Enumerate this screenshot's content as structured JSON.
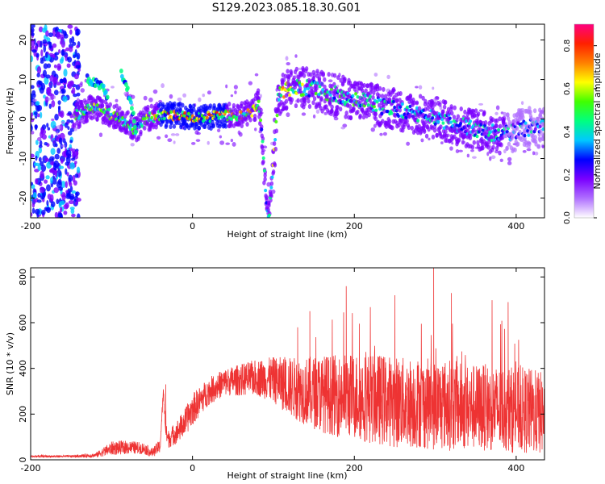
{
  "title": "S129.2023.085.18.30.G01",
  "colorbar": {
    "label": "Normalized spectral amplitude",
    "ticks": [
      "0.0",
      "0.2",
      "0.4",
      "0.6",
      "0.8"
    ],
    "tick_values": [
      0.0,
      0.2,
      0.4,
      0.6,
      0.8
    ],
    "range": [
      0,
      0.9
    ],
    "colors": [
      "#ffffff",
      "#b070ff",
      "#7a00ff",
      "#0000ff",
      "#00c8ff",
      "#00ff80",
      "#40ff00",
      "#ffff00",
      "#ff8000",
      "#ff2000",
      "#ff0080"
    ]
  },
  "chart_data": [
    {
      "type": "heatmap",
      "title": "S129.2023.085.18.30.G01",
      "xlabel": "Height of straight line (km)",
      "ylabel": "Frequency (Hz)",
      "xlim": [
        -200,
        435
      ],
      "ylim": [
        -25,
        24
      ],
      "x_ticks": [
        -200,
        0,
        200,
        400
      ],
      "x_tick_labels": [
        "-200",
        "0",
        "200",
        "400"
      ],
      "y_ticks": [
        -20,
        -10,
        0,
        10,
        20
      ],
      "y_tick_labels": [
        "-20",
        "-10",
        "0",
        "10",
        "20"
      ],
      "ridge": {
        "x": [
          -140,
          -125,
          -110,
          -100,
          -90,
          -80,
          -70,
          -60,
          -40,
          -20,
          0,
          20,
          40,
          60,
          75,
          82,
          88,
          92,
          95,
          100,
          105,
          110,
          120,
          140,
          160,
          180,
          200,
          220,
          240,
          260,
          280,
          300,
          320,
          340,
          360,
          380,
          400,
          420,
          435
        ],
        "y": [
          1,
          3,
          2,
          1,
          0,
          -1,
          -3,
          0,
          1,
          1,
          0.5,
          0.5,
          1,
          1,
          2,
          5,
          -10,
          -23,
          -24,
          -10,
          4,
          7,
          8,
          8,
          7,
          6,
          5,
          4,
          3,
          2,
          1,
          0,
          -1,
          -2,
          -3,
          -4,
          -3,
          -2,
          -2
        ],
        "level": [
          0.45,
          0.5,
          0.55,
          0.55,
          0.5,
          0.5,
          0.45,
          0.55,
          0.65,
          0.75,
          0.7,
          0.7,
          0.65,
          0.6,
          0.6,
          0.5,
          0.45,
          0.4,
          0.45,
          0.5,
          0.55,
          0.6,
          0.55,
          0.5,
          0.5,
          0.45,
          0.45,
          0.45,
          0.4,
          0.4,
          0.4,
          0.4,
          0.4,
          0.4,
          0.4,
          0.4,
          0.35,
          0.35,
          0.35
        ]
      },
      "secondary_ridges": [
        {
          "x": [
            -130,
            -120,
            -110,
            -105
          ],
          "y": [
            10,
            9,
            8,
            5
          ]
        },
        {
          "x": [
            -88,
            -85,
            -80,
            -75,
            -70
          ],
          "y": [
            12,
            10,
            7,
            3,
            -3
          ]
        }
      ],
      "noise_band": {
        "x": [
          -200,
          -140
        ]
      }
    },
    {
      "type": "line",
      "xlabel": "Height of straight line (km)",
      "ylabel": "SNR (10 * v/v)",
      "xlim": [
        -200,
        435
      ],
      "ylim": [
        0,
        840
      ],
      "x_ticks": [
        -200,
        0,
        200,
        400
      ],
      "x_tick_labels": [
        "-200",
        "0",
        "200",
        "400"
      ],
      "y_ticks": [
        0,
        200,
        400,
        600,
        800
      ],
      "y_tick_labels": [
        "0",
        "200",
        "400",
        "600",
        "800"
      ],
      "color": "#ee3333",
      "envelope": {
        "x": [
          -200,
          -150,
          -120,
          -100,
          -80,
          -60,
          -50,
          -40,
          -36,
          -33,
          -30,
          -20,
          -10,
          0,
          20,
          40,
          60,
          80,
          100,
          120,
          140,
          160,
          180,
          200,
          220,
          240,
          260,
          280,
          300,
          320,
          340,
          360,
          380,
          400,
          420,
          435
        ],
        "y": [
          15,
          15,
          20,
          50,
          55,
          50,
          30,
          60,
          300,
          120,
          90,
          120,
          160,
          220,
          300,
          340,
          350,
          360,
          350,
          320,
          300,
          290,
          280,
          280,
          270,
          260,
          250,
          250,
          240,
          240,
          230,
          230,
          220,
          220,
          210,
          200
        ],
        "spread": [
          5,
          5,
          10,
          30,
          30,
          25,
          20,
          30,
          20,
          40,
          40,
          50,
          60,
          70,
          60,
          60,
          70,
          80,
          100,
          130,
          150,
          170,
          180,
          190,
          200,
          200,
          200,
          200,
          200,
          200,
          190,
          190,
          190,
          190,
          190,
          180
        ]
      },
      "peaks": [
        {
          "x": -33,
          "y": 330
        },
        {
          "x": 130,
          "y": 580
        },
        {
          "x": 145,
          "y": 650
        },
        {
          "x": 190,
          "y": 760
        },
        {
          "x": 250,
          "y": 720
        },
        {
          "x": 298,
          "y": 840
        },
        {
          "x": 320,
          "y": 730
        },
        {
          "x": 390,
          "y": 690
        }
      ]
    }
  ]
}
